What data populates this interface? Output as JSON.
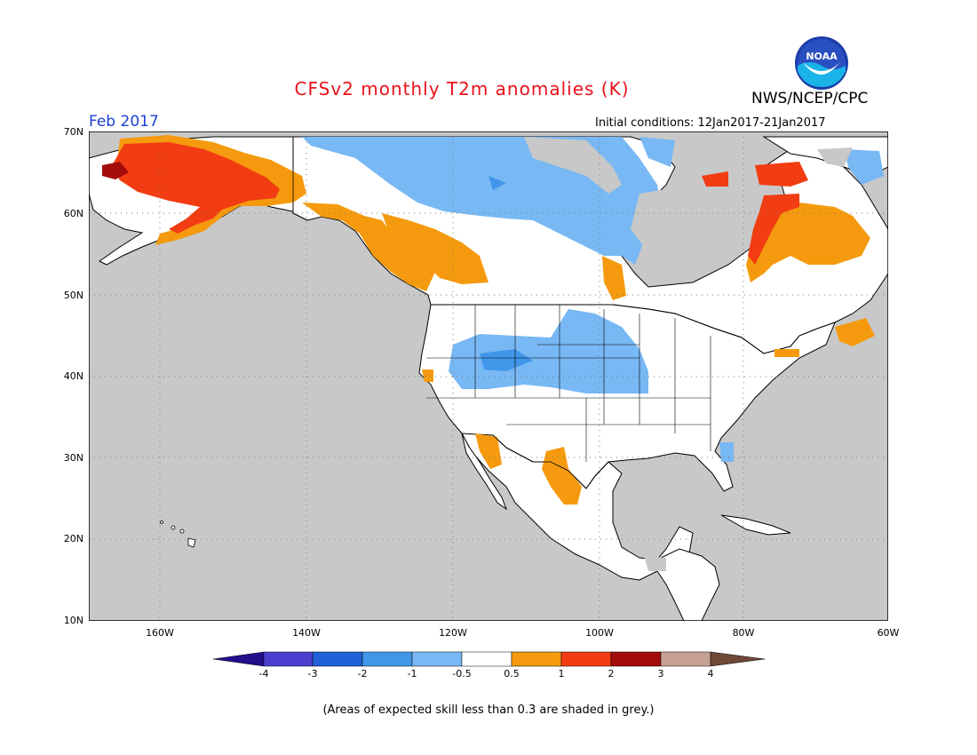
{
  "header": {
    "title": "CFSv2 monthly T2m anomalies (K)",
    "organization": "NWS/NCEP/CPC",
    "logo_text": "NOAA",
    "forecast_month": "Feb 2017",
    "initial_conditions": "Initial conditions: 12Jan2017-21Jan2017"
  },
  "map": {
    "lat_labels": [
      "70N",
      "60N",
      "50N",
      "40N",
      "30N",
      "20N",
      "10N"
    ],
    "lon_labels": [
      "160W",
      "140W",
      "120W",
      "100W",
      "80W",
      "60W"
    ],
    "colors": {
      "ocean": "#c8c8c8",
      "land": "#ffffff",
      "coast": "#000000"
    }
  },
  "colorbar": {
    "ticks": [
      "-4",
      "-3",
      "-2",
      "-1",
      "-0.5",
      "0.5",
      "1",
      "2",
      "3",
      "4"
    ],
    "colors": [
      "#240e8c",
      "#4b3fd0",
      "#2060d8",
      "#4196ea",
      "#78b8f4",
      "#ffffff",
      "#f59a0e",
      "#f23c12",
      "#a40c0c",
      "#c6a092",
      "#704838"
    ]
  },
  "footnote": "(Areas of expected skill less than 0.3 are shaded in grey.)"
}
